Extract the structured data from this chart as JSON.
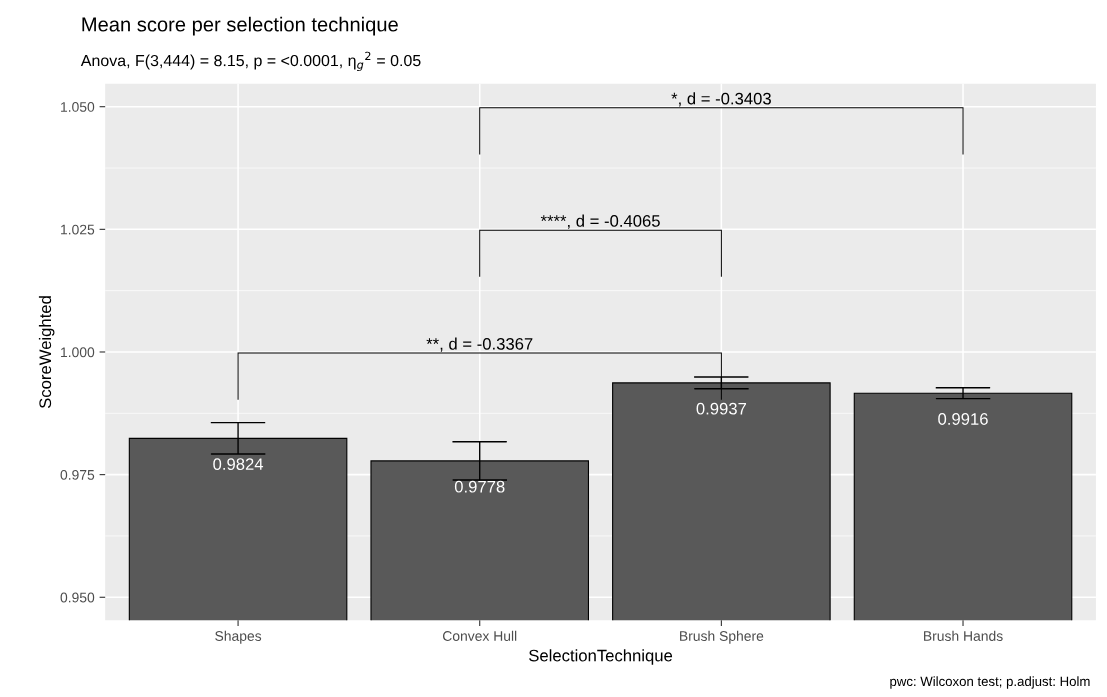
{
  "chart_data": {
    "type": "bar",
    "title": "Mean score per selection technique",
    "subtitle": "Anova, F(3,444) = 8.15, p = <0.0001, η$_{g}$$^{2}$ = 0.05",
    "xlabel": "SelectionTechnique",
    "ylabel": "ScoreWeighted",
    "categories": [
      "Shapes",
      "Convex Hull",
      "Brush Sphere",
      "Brush Hands"
    ],
    "values": [
      0.9824,
      0.9778,
      0.9937,
      0.9916
    ],
    "errors": [
      0.0032,
      0.0039,
      0.0012,
      0.0011
    ],
    "color": "#595959",
    "data_labels": true,
    "ylim": [
      0.9453,
      1.0547
    ],
    "yticks": [
      {
        "value": 0.95,
        "label": "0.950"
      },
      {
        "value": 0.975,
        "label": "0.975"
      },
      {
        "value": 1.0,
        "label": "1.000"
      },
      {
        "value": 1.025,
        "label": "1.025"
      },
      {
        "value": 1.05,
        "label": "1.050"
      }
    ],
    "grid": true,
    "annotations": [
      "*, d = -0.3403",
      "****, d = -0.4065",
      "**, d = -0.3367",
      "pwc: Wilcoxon test; p.adjust: Holm"
    ]
  }
}
